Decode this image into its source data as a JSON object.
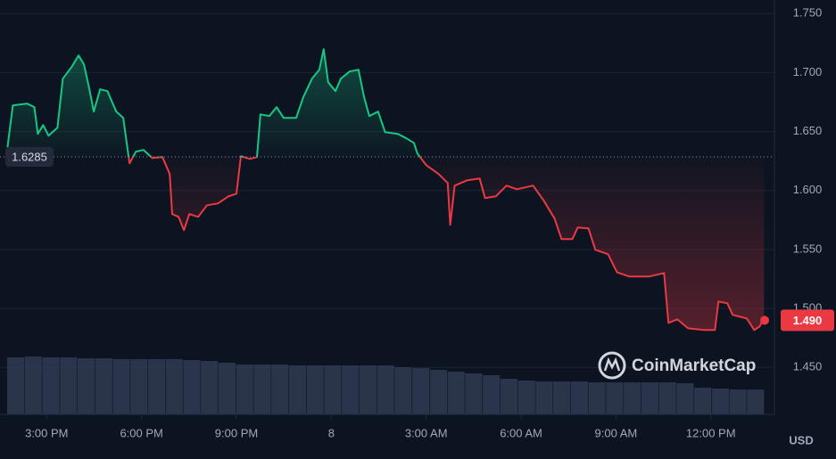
{
  "chart_data": {
    "type": "line",
    "x": [
      13.76,
      13.93,
      14.38,
      14.61,
      14.72,
      14.89,
      15.06,
      15.34,
      15.51,
      15.79,
      16.01,
      16.18,
      16.35,
      16.49,
      16.69,
      16.92,
      17.2,
      17.42,
      17.62,
      17.82,
      18.06,
      18.34,
      18.66,
      18.89,
      18.97,
      19.17,
      19.34,
      19.51,
      19.79,
      20.07,
      20.41,
      20.75,
      21.0,
      21.14,
      21.42,
      21.65,
      21.76,
      22.04,
      22.27,
      22.49,
      22.89,
      23.11,
      23.39,
      23.62,
      23.76,
      23.9,
      24.13,
      24.3,
      24.58,
      24.86,
      25.03,
      25.2,
      25.48,
      25.7,
      26.1,
      26.38,
      26.61,
      26.72,
      27.0,
      27.39,
      27.68,
      27.76,
      27.9,
      28.3,
      28.69,
      28.86,
      29.2,
      29.54,
      29.87,
      30.38,
      30.72,
      31.06,
      31.28,
      31.62,
      31.79,
      32.13,
      32.35,
      32.75,
      33.03,
      33.42,
      34.04,
      34.52,
      34.66,
      34.94,
      35.28,
      35.79,
      36.13,
      36.24,
      36.52,
      36.69,
      37.14,
      37.37,
      37.54,
      37.68
    ],
    "series": [
      {
        "name": "Price",
        "values": [
          1.6366,
          1.6722,
          1.6737,
          1.6707,
          1.648,
          1.6555,
          1.6465,
          1.6533,
          1.6948,
          1.7047,
          1.7145,
          1.7069,
          1.6858,
          1.6669,
          1.6858,
          1.6843,
          1.6669,
          1.6616,
          1.623,
          1.6329,
          1.6344,
          1.6276,
          1.6283,
          1.614,
          1.58,
          1.5777,
          1.5664,
          1.58,
          1.5777,
          1.5875,
          1.589,
          1.5951,
          1.5973,
          1.6291,
          1.6268,
          1.6283,
          1.6646,
          1.6631,
          1.6707,
          1.6616,
          1.6616,
          1.6789,
          1.6948,
          1.7024,
          1.7198,
          1.6918,
          1.6843,
          1.6948,
          1.7009,
          1.7024,
          1.6797,
          1.6631,
          1.6669,
          1.6495,
          1.648,
          1.6442,
          1.6404,
          1.6314,
          1.6215,
          1.614,
          1.6064,
          1.5709,
          1.6041,
          1.6087,
          1.6102,
          1.5936,
          1.5951,
          1.6041,
          1.6011,
          1.6041,
          1.5913,
          1.5762,
          1.5588,
          1.5588,
          1.5686,
          1.5679,
          1.5497,
          1.546,
          1.5308,
          1.5271,
          1.5271,
          1.5301,
          1.4878,
          1.4908,
          1.4832,
          1.4817,
          1.4817,
          1.5059,
          1.5044,
          1.4946,
          1.4915,
          1.4817,
          1.4847,
          1.4915
        ]
      }
    ],
    "up_color": "#16c784",
    "down_color": "#ea3943",
    "baseline": 1.6285,
    "current_price": {
      "value": 1.49,
      "label": "1.490"
    },
    "xlim": [
      13.75,
      37.7
    ],
    "xticks": [
      {
        "value": 15,
        "label": "3:00 PM"
      },
      {
        "value": 18,
        "label": "6:00 PM"
      },
      {
        "value": 21,
        "label": "9:00 PM"
      },
      {
        "value": 24,
        "label": "8"
      },
      {
        "value": 27,
        "label": "3:00 AM"
      },
      {
        "value": 30,
        "label": "6:00 AM"
      },
      {
        "value": 33,
        "label": "9:00 AM"
      },
      {
        "value": 36,
        "label": "12:00 PM"
      }
    ],
    "ylim": [
      1.42,
      1.76
    ],
    "yticks": [
      {
        "value": 1.45,
        "label": "1.450"
      },
      {
        "value": 1.5,
        "label": "1.500"
      },
      {
        "value": 1.55,
        "label": "1.550"
      },
      {
        "value": 1.6,
        "label": "1.600"
      },
      {
        "value": 1.65,
        "label": "1.650"
      },
      {
        "value": 1.7,
        "label": "1.700"
      },
      {
        "value": 1.75,
        "label": "1.750"
      }
    ],
    "grid": true,
    "y_unit": "USD",
    "watermark": "CoinMarketCap",
    "volume": {
      "color": "#323d58",
      "ylim": [
        0,
        70
      ],
      "values": [
        64,
        65,
        64,
        64,
        63,
        63,
        62,
        62,
        62,
        62,
        61,
        60,
        58,
        56,
        56,
        56,
        55,
        55,
        55,
        55,
        55,
        55,
        53,
        52,
        50,
        48,
        46,
        44,
        40,
        38,
        37,
        37,
        37,
        36,
        36,
        36,
        36,
        36,
        35,
        30,
        29,
        28,
        28
      ]
    }
  }
}
